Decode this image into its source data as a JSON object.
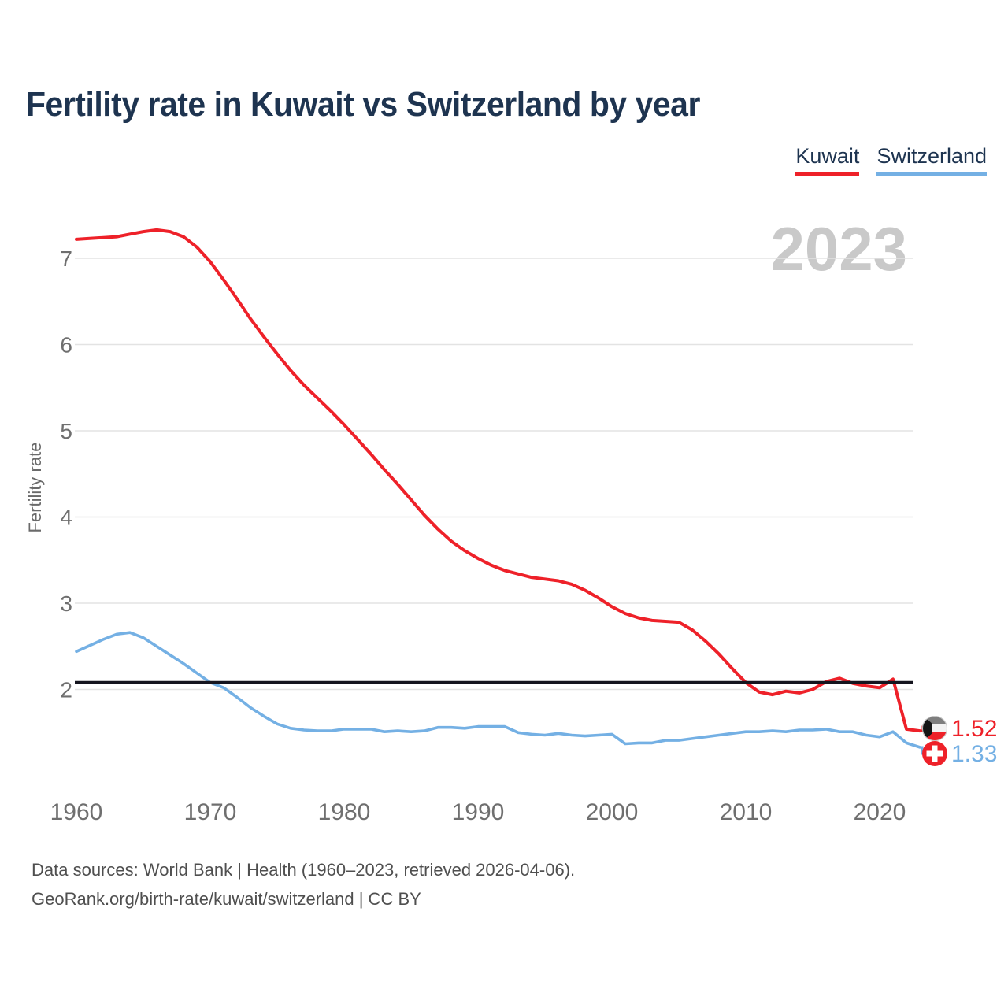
{
  "title": "Fertility rate in Kuwait vs Switzerland by year",
  "watermark": "2023",
  "legend": [
    {
      "label": "Kuwait",
      "color": "#ee2129"
    },
    {
      "label": "Switzerland",
      "color": "#74b0e4"
    }
  ],
  "chart_data": {
    "type": "line",
    "title": "Fertility rate in Kuwait vs Switzerland by year",
    "xlabel": "",
    "ylabel": "Fertility rate",
    "x_ticks": [
      1960,
      1970,
      1980,
      1990,
      2000,
      2010,
      2020
    ],
    "y_ticks": [
      2,
      3,
      4,
      5,
      6,
      7
    ],
    "ylim": [
      1.0,
      7.5
    ],
    "xlim": [
      1960,
      2023
    ],
    "grid": "horizontal",
    "legend_position": "top-right",
    "watermark_year": "2023",
    "reference_line": {
      "value": 2.08,
      "color": "#14141e"
    },
    "x": [
      1960,
      1961,
      1962,
      1963,
      1964,
      1965,
      1966,
      1967,
      1968,
      1969,
      1970,
      1971,
      1972,
      1973,
      1974,
      1975,
      1976,
      1977,
      1978,
      1979,
      1980,
      1981,
      1982,
      1983,
      1984,
      1985,
      1986,
      1987,
      1988,
      1989,
      1990,
      1991,
      1992,
      1993,
      1994,
      1995,
      1996,
      1997,
      1998,
      1999,
      2000,
      2001,
      2002,
      2003,
      2004,
      2005,
      2006,
      2007,
      2008,
      2009,
      2010,
      2011,
      2012,
      2013,
      2014,
      2015,
      2016,
      2017,
      2018,
      2019,
      2020,
      2021,
      2022,
      2023
    ],
    "series": [
      {
        "name": "Kuwait",
        "color": "#ee2129",
        "end_label": "1.52",
        "values": [
          7.22,
          7.23,
          7.24,
          7.25,
          7.28,
          7.31,
          7.33,
          7.31,
          7.25,
          7.13,
          6.96,
          6.75,
          6.53,
          6.3,
          6.09,
          5.89,
          5.7,
          5.53,
          5.38,
          5.23,
          5.07,
          4.9,
          4.73,
          4.55,
          4.38,
          4.2,
          4.02,
          3.86,
          3.72,
          3.61,
          3.52,
          3.44,
          3.38,
          3.34,
          3.3,
          3.28,
          3.26,
          3.22,
          3.15,
          3.06,
          2.96,
          2.88,
          2.83,
          2.8,
          2.79,
          2.78,
          2.69,
          2.56,
          2.41,
          2.24,
          2.08,
          1.97,
          1.94,
          1.98,
          1.96,
          2.0,
          2.09,
          2.13,
          2.07,
          2.04,
          2.02,
          2.12,
          1.54,
          1.52
        ]
      },
      {
        "name": "Switzerland",
        "color": "#74b0e4",
        "end_label": "1.33",
        "values": [
          2.44,
          2.51,
          2.58,
          2.64,
          2.66,
          2.6,
          2.5,
          2.4,
          2.3,
          2.19,
          2.08,
          2.02,
          1.91,
          1.79,
          1.69,
          1.6,
          1.55,
          1.53,
          1.52,
          1.52,
          1.54,
          1.54,
          1.54,
          1.51,
          1.52,
          1.51,
          1.52,
          1.56,
          1.56,
          1.55,
          1.57,
          1.57,
          1.57,
          1.5,
          1.48,
          1.47,
          1.49,
          1.47,
          1.46,
          1.47,
          1.48,
          1.37,
          1.38,
          1.38,
          1.41,
          1.41,
          1.43,
          1.45,
          1.47,
          1.49,
          1.51,
          1.51,
          1.52,
          1.51,
          1.53,
          1.53,
          1.54,
          1.51,
          1.51,
          1.47,
          1.45,
          1.51,
          1.38,
          1.33
        ]
      }
    ]
  },
  "footer": {
    "line1": "Data sources: World Bank | Health (1960–2023, retrieved 2026-04-06).",
    "line2": "GeoRank.org/birth-rate/kuwait/switzerland | CC BY"
  }
}
